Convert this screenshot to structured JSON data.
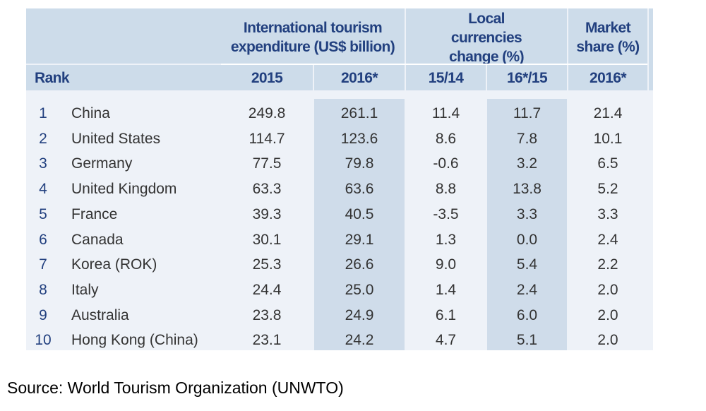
{
  "table": {
    "group_headers": {
      "expenditure": "International tourism expenditure (US$ billion)",
      "currencies": "Local currencies change (%)",
      "market": "Market share (%)"
    },
    "sub_headers": {
      "rank": "Rank",
      "y2015": "2015",
      "y2016": "2016*",
      "ch1514": "15/14",
      "ch1615": "16*/15",
      "ms2016": "2016*"
    },
    "rows": [
      {
        "rank": "1",
        "country": "China",
        "y2015": "249.8",
        "y2016": "261.1",
        "ch1514": "11.4",
        "ch1615": "11.7",
        "ms": "21.4"
      },
      {
        "rank": "2",
        "country": "United States",
        "y2015": "114.7",
        "y2016": "123.6",
        "ch1514": "8.6",
        "ch1615": "7.8",
        "ms": "10.1"
      },
      {
        "rank": "3",
        "country": "Germany",
        "y2015": "77.5",
        "y2016": "79.8",
        "ch1514": "-0.6",
        "ch1615": "3.2",
        "ms": "6.5"
      },
      {
        "rank": "4",
        "country": "United Kingdom",
        "y2015": "63.3",
        "y2016": "63.6",
        "ch1514": "8.8",
        "ch1615": "13.8",
        "ms": "5.2"
      },
      {
        "rank": "5",
        "country": "France",
        "y2015": "39.3",
        "y2016": "40.5",
        "ch1514": "-3.5",
        "ch1615": "3.3",
        "ms": "3.3"
      },
      {
        "rank": "6",
        "country": "Canada",
        "y2015": "30.1",
        "y2016": "29.1",
        "ch1514": "1.3",
        "ch1615": "0.0",
        "ms": "2.4"
      },
      {
        "rank": "7",
        "country": "Korea (ROK)",
        "y2015": "25.3",
        "y2016": "26.6",
        "ch1514": "9.0",
        "ch1615": "5.4",
        "ms": "2.2"
      },
      {
        "rank": "8",
        "country": "Italy",
        "y2015": "24.4",
        "y2016": "25.0",
        "ch1514": "1.4",
        "ch1615": "2.4",
        "ms": "2.0"
      },
      {
        "rank": "9",
        "country": "Australia",
        "y2015": "23.8",
        "y2016": "24.9",
        "ch1514": "6.1",
        "ch1615": "6.0",
        "ms": "2.0"
      },
      {
        "rank": "10",
        "country": "Hong Kong (China)",
        "y2015": "23.1",
        "y2016": "24.2",
        "ch1514": "4.7",
        "ch1615": "5.1",
        "ms": "2.0"
      }
    ]
  },
  "source": "Source: World Tourism Organization (UNWTO)"
}
